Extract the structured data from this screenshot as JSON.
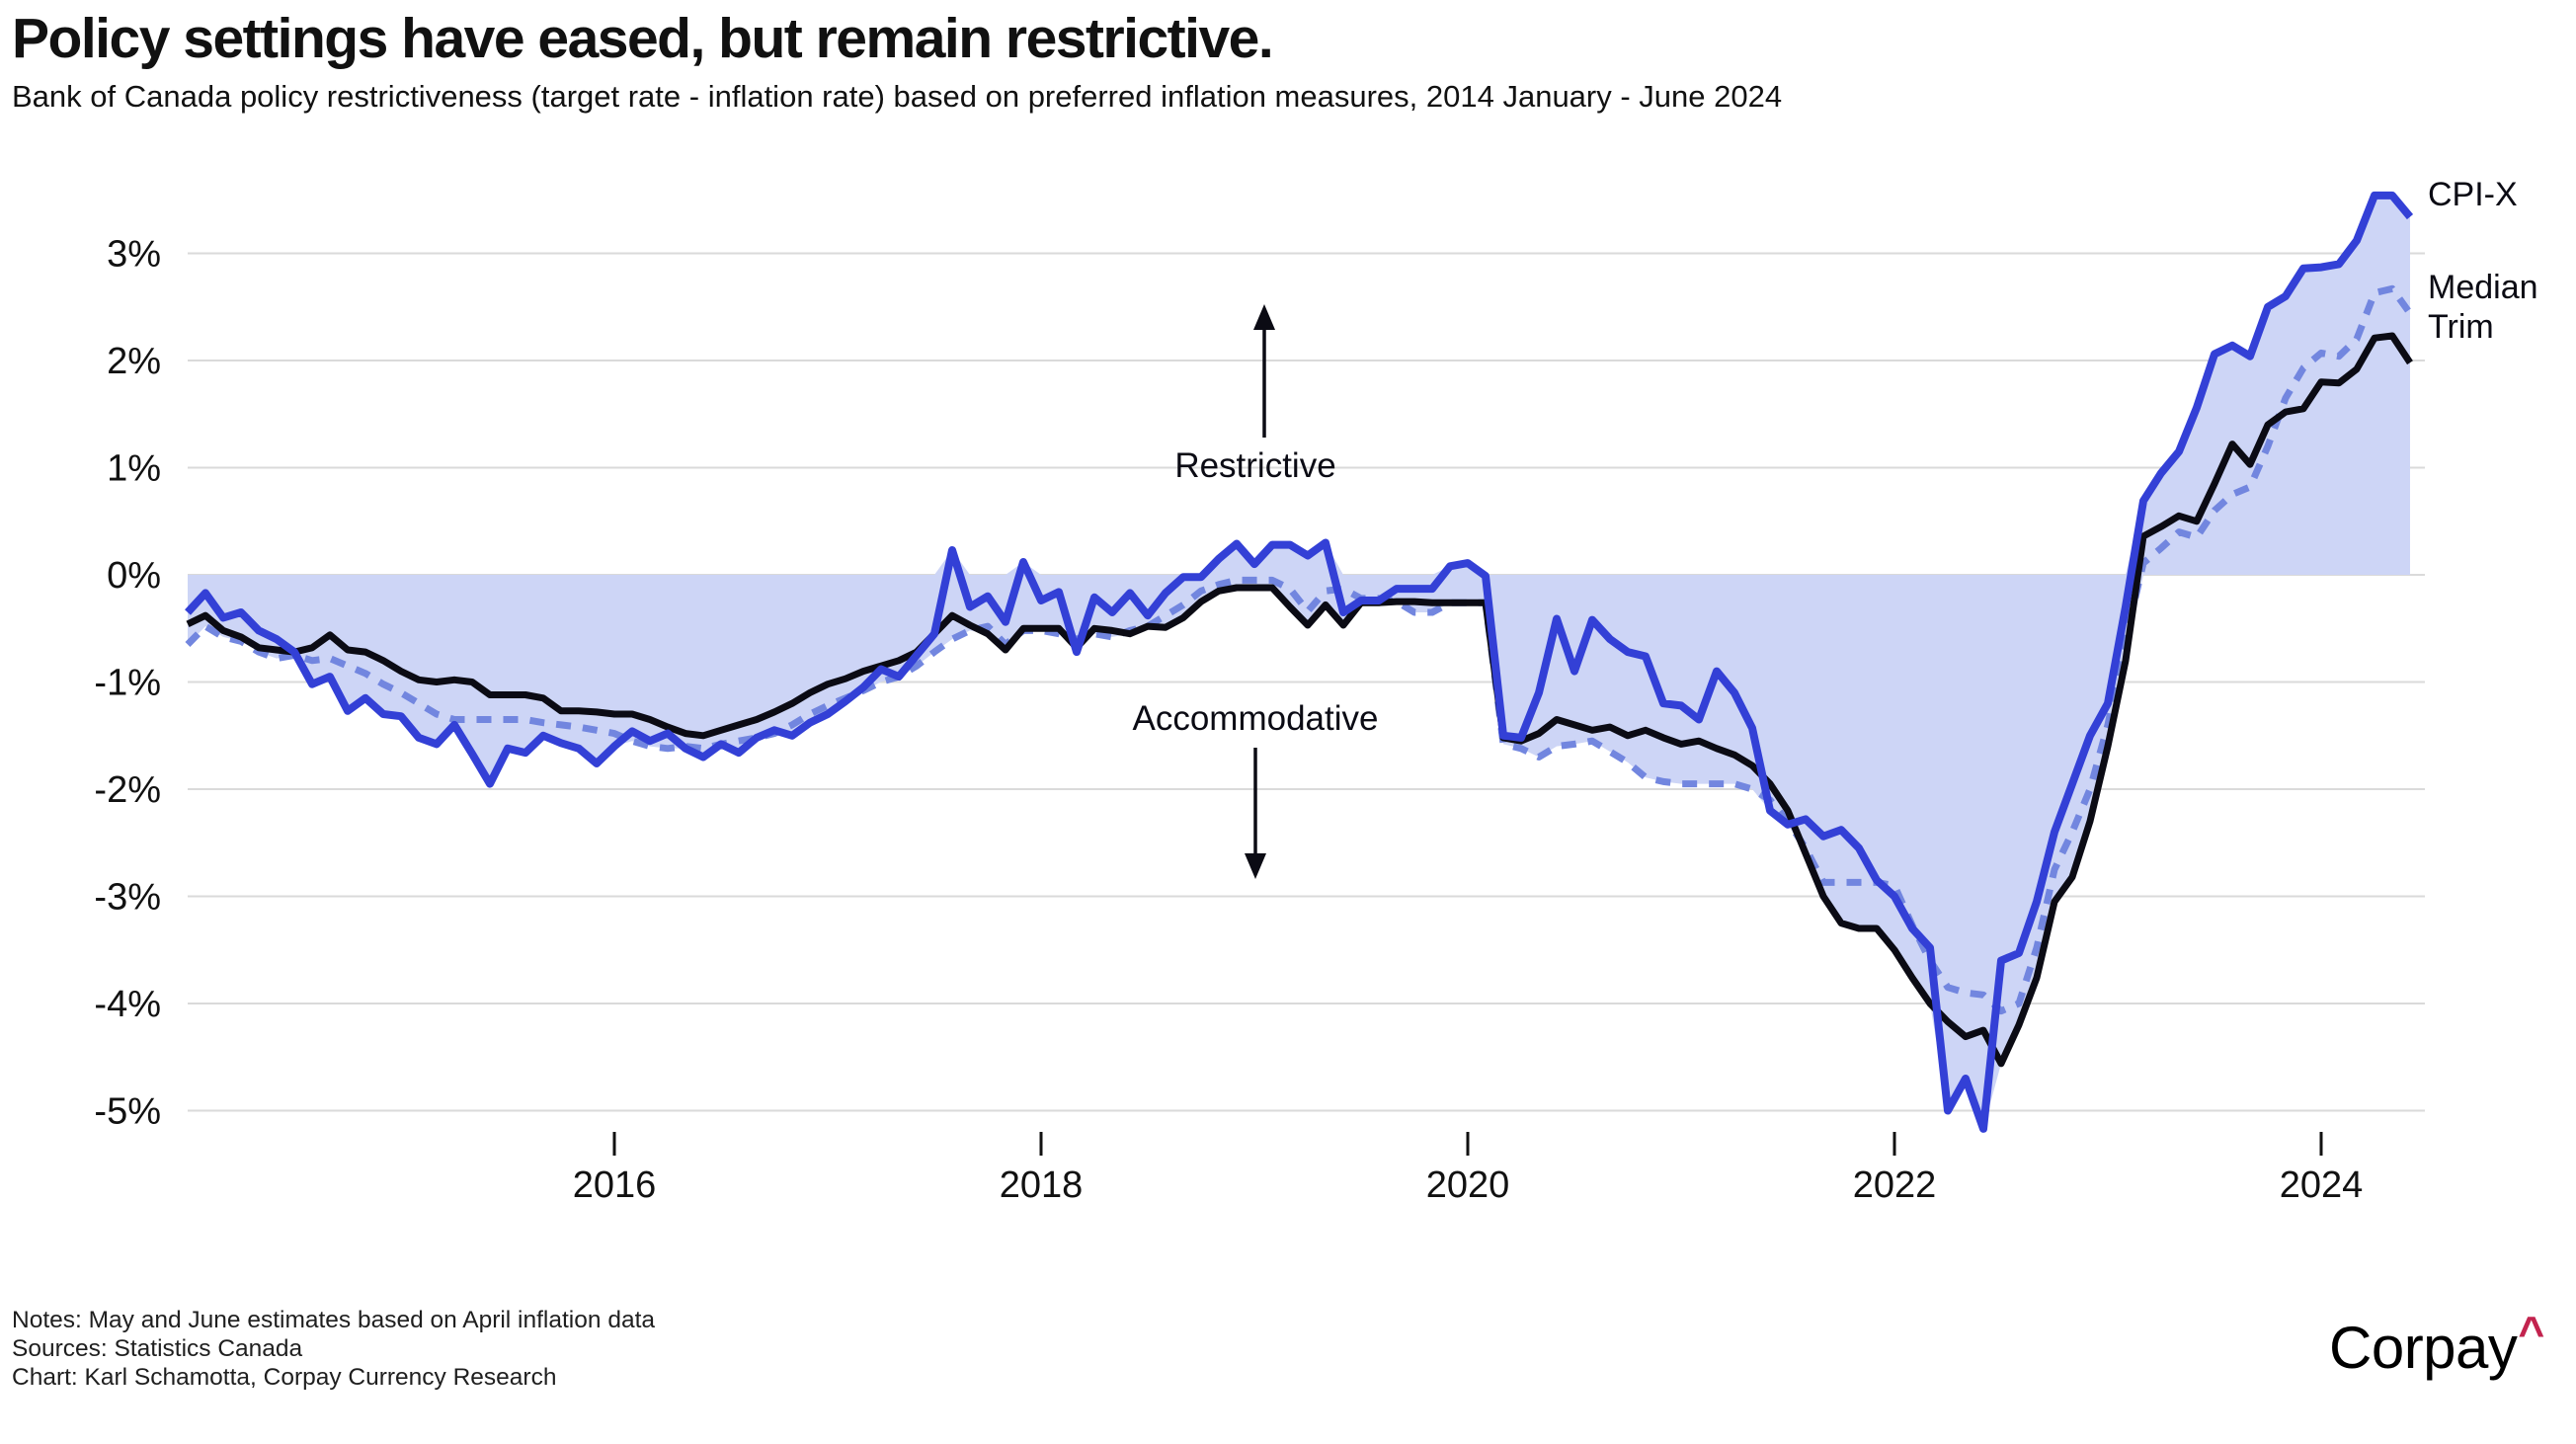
{
  "header": {
    "title": "Policy settings have eased, but remain restrictive.",
    "subtitle": "Bank of Canada policy restrictiveness (target rate - inflation rate) based on preferred inflation measures, 2014 January - June 2024"
  },
  "footer": {
    "notes_line1": "Notes: May and June estimates based on April inflation data",
    "notes_line2": "Sources: Statistics Canada",
    "notes_line3": "Chart: Karl Schamotta, Corpay Currency Research",
    "logo_text": "Corpay",
    "logo_caret": "^",
    "logo_caret_color": "#c2234e"
  },
  "chart_data": {
    "type": "line",
    "title": "Policy settings have eased, but remain restrictive.",
    "subtitle": "Bank of Canada policy restrictiveness (target rate - inflation rate) based on preferred inflation measures, 2014 January - June 2024",
    "frequency": "monthly",
    "x_start": "2014-01",
    "x_end": "2024-06",
    "n_points": 126,
    "ylim": [
      -5.5,
      3.8
    ],
    "grid": true,
    "yticks": [
      {
        "value": 3,
        "label": "3%"
      },
      {
        "value": 2,
        "label": "2%"
      },
      {
        "value": 1,
        "label": "1%"
      },
      {
        "value": 0,
        "label": "0%"
      },
      {
        "value": -1,
        "label": "-1%"
      },
      {
        "value": -2,
        "label": "-2%"
      },
      {
        "value": -3,
        "label": "-3%"
      },
      {
        "value": -4,
        "label": "-4%"
      },
      {
        "value": -5,
        "label": "-5%"
      }
    ],
    "xticks": [
      {
        "label": "2016",
        "month_index": 24
      },
      {
        "label": "2018",
        "month_index": 48
      },
      {
        "label": "2020",
        "month_index": 72
      },
      {
        "label": "2022",
        "month_index": 96
      },
      {
        "label": "2024",
        "month_index": 120
      }
    ],
    "fill": {
      "color": "#cdd5f6",
      "description": "shaded area between 0% and the outermost of the three series"
    },
    "grid_color": "#dadada",
    "annotations": [
      {
        "text": "Restrictive",
        "arrow": "up"
      },
      {
        "text": "Accommodative",
        "arrow": "down"
      }
    ],
    "series": [
      {
        "name": "CPI-X",
        "style": "solid",
        "color": "#3340d6",
        "values": [
          -0.35,
          -0.17,
          -0.4,
          -0.35,
          -0.52,
          -0.6,
          -0.72,
          -1.02,
          -0.95,
          -1.27,
          -1.15,
          -1.3,
          -1.32,
          -1.52,
          -1.58,
          -1.4,
          -1.67,
          -1.95,
          -1.62,
          -1.66,
          -1.5,
          -1.57,
          -1.62,
          -1.76,
          -1.6,
          -1.46,
          -1.55,
          -1.48,
          -1.62,
          -1.7,
          -1.58,
          -1.66,
          -1.52,
          -1.45,
          -1.5,
          -1.38,
          -1.3,
          -1.18,
          -1.05,
          -0.88,
          -0.95,
          -0.75,
          -0.55,
          0.23,
          -0.3,
          -0.2,
          -0.44,
          0.12,
          -0.24,
          -0.16,
          -0.72,
          -0.21,
          -0.35,
          -0.17,
          -0.38,
          -0.17,
          -0.02,
          -0.02,
          0.15,
          0.29,
          0.1,
          0.28,
          0.28,
          0.18,
          0.3,
          -0.35,
          -0.24,
          -0.24,
          -0.13,
          -0.13,
          -0.13,
          0.08,
          0.11,
          -0.01,
          -1.5,
          -1.52,
          -1.1,
          -0.41,
          -0.9,
          -0.42,
          -0.6,
          -0.72,
          -0.76,
          -1.2,
          -1.22,
          -1.35,
          -0.9,
          -1.1,
          -1.43,
          -2.2,
          -2.33,
          -2.28,
          -2.44,
          -2.38,
          -2.55,
          -2.85,
          -3.0,
          -3.3,
          -3.48,
          -5.0,
          -4.7,
          -5.17,
          -3.6,
          -3.53,
          -3.05,
          -2.4,
          -1.95,
          -1.5,
          -1.2,
          -0.3,
          0.69,
          0.95,
          1.15,
          1.56,
          2.06,
          2.14,
          2.04,
          2.5,
          2.6,
          2.86,
          2.87,
          2.9,
          3.12,
          3.54,
          3.54,
          3.34
        ]
      },
      {
        "name": "Median",
        "style": "dashed",
        "color": "#7286df",
        "values": [
          -0.65,
          -0.48,
          -0.58,
          -0.62,
          -0.72,
          -0.78,
          -0.75,
          -0.8,
          -0.78,
          -0.85,
          -0.92,
          -1.02,
          -1.1,
          -1.2,
          -1.3,
          -1.35,
          -1.35,
          -1.35,
          -1.35,
          -1.35,
          -1.38,
          -1.4,
          -1.42,
          -1.45,
          -1.48,
          -1.55,
          -1.6,
          -1.62,
          -1.6,
          -1.62,
          -1.58,
          -1.55,
          -1.52,
          -1.48,
          -1.4,
          -1.3,
          -1.22,
          -1.15,
          -1.08,
          -1.0,
          -0.95,
          -0.85,
          -0.72,
          -0.6,
          -0.52,
          -0.48,
          -0.65,
          -0.52,
          -0.52,
          -0.55,
          -0.6,
          -0.55,
          -0.58,
          -0.52,
          -0.48,
          -0.38,
          -0.28,
          -0.15,
          -0.09,
          -0.05,
          -0.05,
          -0.05,
          -0.13,
          -0.34,
          -0.15,
          -0.13,
          -0.22,
          -0.22,
          -0.25,
          -0.35,
          -0.35,
          -0.26,
          -0.26,
          -0.26,
          -1.58,
          -1.62,
          -1.7,
          -1.6,
          -1.58,
          -1.55,
          -1.65,
          -1.75,
          -1.89,
          -1.93,
          -1.95,
          -1.95,
          -1.95,
          -1.95,
          -2.0,
          -2.1,
          -2.3,
          -2.55,
          -2.87,
          -2.87,
          -2.87,
          -2.87,
          -2.9,
          -3.27,
          -3.6,
          -3.85,
          -3.9,
          -3.92,
          -4.07,
          -4.0,
          -3.48,
          -2.75,
          -2.4,
          -2.0,
          -1.4,
          -0.6,
          0.11,
          0.25,
          0.4,
          0.35,
          0.6,
          0.75,
          0.82,
          1.2,
          1.65,
          1.93,
          2.07,
          2.04,
          2.2,
          2.63,
          2.67,
          2.44
        ]
      },
      {
        "name": "Trim",
        "style": "solid",
        "color": "#0b0b14",
        "values": [
          -0.46,
          -0.38,
          -0.52,
          -0.58,
          -0.68,
          -0.7,
          -0.72,
          -0.68,
          -0.56,
          -0.7,
          -0.72,
          -0.8,
          -0.9,
          -0.98,
          -1.0,
          -0.98,
          -1.0,
          -1.12,
          -1.12,
          -1.12,
          -1.15,
          -1.27,
          -1.27,
          -1.28,
          -1.3,
          -1.3,
          -1.35,
          -1.42,
          -1.48,
          -1.5,
          -1.45,
          -1.4,
          -1.35,
          -1.28,
          -1.2,
          -1.1,
          -1.02,
          -0.97,
          -0.9,
          -0.85,
          -0.8,
          -0.72,
          -0.55,
          -0.38,
          -0.47,
          -0.55,
          -0.7,
          -0.5,
          -0.5,
          -0.5,
          -0.68,
          -0.5,
          -0.52,
          -0.55,
          -0.48,
          -0.49,
          -0.4,
          -0.25,
          -0.15,
          -0.12,
          -0.12,
          -0.12,
          -0.3,
          -0.47,
          -0.28,
          -0.47,
          -0.26,
          -0.26,
          -0.25,
          -0.25,
          -0.26,
          -0.26,
          -0.26,
          -0.26,
          -1.52,
          -1.55,
          -1.48,
          -1.35,
          -1.4,
          -1.45,
          -1.42,
          -1.5,
          -1.45,
          -1.52,
          -1.58,
          -1.55,
          -1.62,
          -1.68,
          -1.78,
          -1.95,
          -2.2,
          -2.6,
          -3.0,
          -3.25,
          -3.3,
          -3.3,
          -3.5,
          -3.76,
          -4.0,
          -4.17,
          -4.31,
          -4.25,
          -4.56,
          -4.2,
          -3.76,
          -3.05,
          -2.82,
          -2.3,
          -1.6,
          -0.8,
          0.36,
          0.45,
          0.55,
          0.5,
          0.85,
          1.22,
          1.03,
          1.4,
          1.52,
          1.55,
          1.8,
          1.79,
          1.92,
          2.21,
          2.23,
          1.98
        ]
      }
    ]
  }
}
